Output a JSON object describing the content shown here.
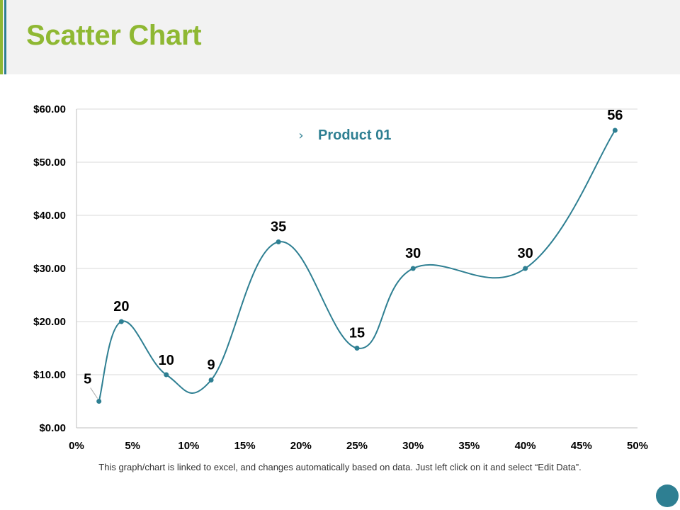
{
  "header": {
    "title": "Scatter Chart"
  },
  "footer": {
    "note": "This graph/chart is linked to excel, and changes automatically  based on data. Just left click on it and select “Edit Data”."
  },
  "colors": {
    "accent_green": "#8fb833",
    "accent_blue": "#2e7f92",
    "series": "#2e7f92",
    "gridline": "#d9d9d9",
    "axis_text": "#000000"
  },
  "chart_data": {
    "type": "scatter",
    "subtype": "smooth-line-markers",
    "title": "",
    "xlabel": "",
    "ylabel": "",
    "xlim": [
      0,
      50
    ],
    "ylim": [
      0,
      60
    ],
    "x_tick_labels": [
      "0%",
      "5%",
      "10%",
      "15%",
      "20%",
      "25%",
      "30%",
      "35%",
      "40%",
      "45%",
      "50%"
    ],
    "y_tick_labels": [
      "$0.00",
      "$10.00",
      "$20.00",
      "$30.00",
      "$40.00",
      "$50.00",
      "$60.00"
    ],
    "grid": true,
    "legend": {
      "position": "top-center",
      "entries": [
        "Product 01"
      ]
    },
    "series": [
      {
        "name": "Product 01",
        "x": [
          2,
          4,
          8,
          12,
          18,
          25,
          30,
          40,
          48
        ],
        "y": [
          5,
          20,
          10,
          9,
          35,
          15,
          30,
          30,
          56
        ],
        "labels": [
          "5",
          "20",
          "10",
          "9",
          "35",
          "15",
          "30",
          "30",
          "56"
        ]
      }
    ]
  }
}
